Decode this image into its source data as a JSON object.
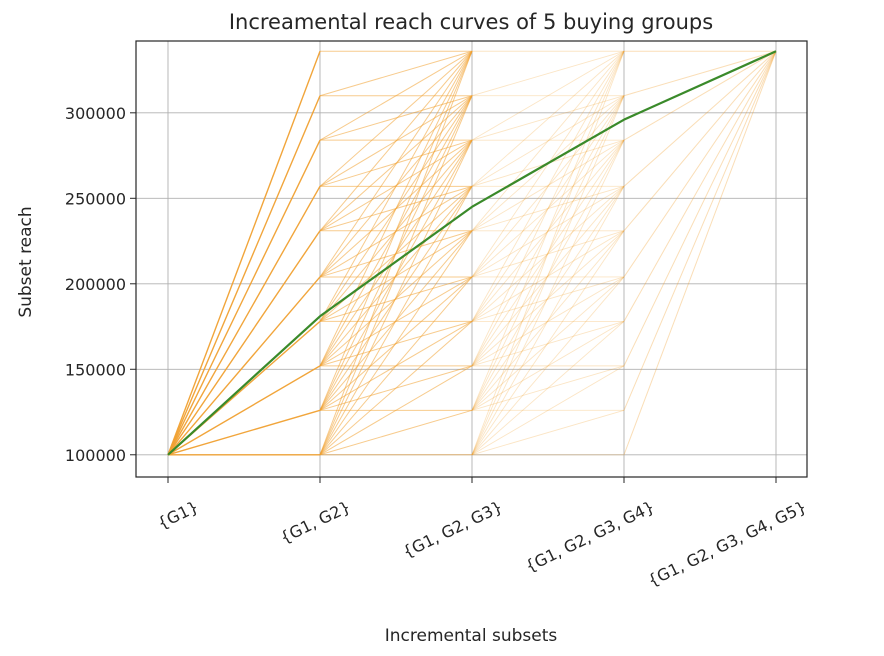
{
  "chart_data": {
    "type": "line",
    "title": "Increamental reach curves of 5 buying groups",
    "xlabel": "Incremental subsets",
    "ylabel": "Subset reach",
    "categories": [
      "{G1}",
      "{G1, G2}",
      "{G1, G2, G3}",
      "{G1, G2, G3, G4}",
      "{G1, G2, G3, G4, G5}"
    ],
    "yticks": [
      100000,
      150000,
      200000,
      250000,
      300000
    ],
    "ytick_labels": [
      "100000",
      "150000",
      "200000",
      "250000",
      "300000"
    ],
    "ylim": [
      87000,
      342000
    ],
    "grid": true,
    "bundle": {
      "description_levels": [
        100000,
        126000,
        152000,
        178000,
        204000,
        231000,
        257000,
        284000,
        310000,
        336000
      ],
      "start": 100000,
      "end": 336000,
      "color": "#f0a030"
    },
    "series": [
      {
        "values": [
          100000,
          181000,
          245000,
          296000,
          336000
        ],
        "color": "#3a8a2a"
      }
    ]
  }
}
